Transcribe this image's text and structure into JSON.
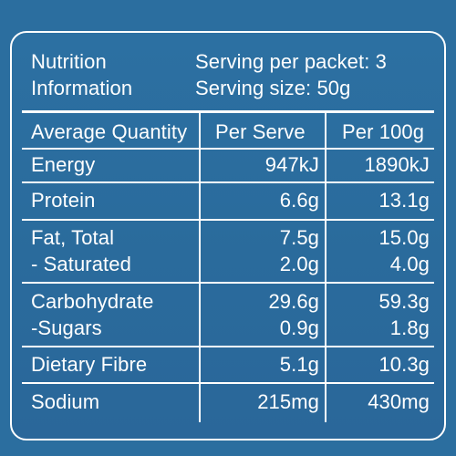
{
  "header": {
    "title_line1": "Nutrition",
    "title_line2": "Information",
    "servings_per_packet": "Serving per packet: 3",
    "serving_size": "Serving size: 50g"
  },
  "columns": {
    "quantity": "Average Quantity",
    "per_serve": "Per Serve",
    "per_100g": "Per 100g"
  },
  "rows": [
    {
      "label": "Energy",
      "per_serve": "947kJ",
      "per_100g": "1890kJ"
    },
    {
      "label": "Protein",
      "per_serve": "6.6g",
      "per_100g": "13.1g"
    },
    {
      "label": "Fat, Total",
      "per_serve": "7.5g",
      "per_100g": "15.0g"
    },
    {
      "label": "- Saturated",
      "per_serve": "2.0g",
      "per_100g": "4.0g"
    },
    {
      "label": "Carbohydrate",
      "per_serve": "29.6g",
      "per_100g": "59.3g"
    },
    {
      "label": "-Sugars",
      "per_serve": "0.9g",
      "per_100g": "1.8g"
    },
    {
      "label": "Dietary Fibre",
      "per_serve": "5.1g",
      "per_100g": "10.3g"
    },
    {
      "label": "Sodium",
      "per_serve": "215mg",
      "per_100g": "430mg"
    }
  ],
  "colors": {
    "background": "#2b6e9f",
    "text": "#ffffff",
    "rule": "#ffffff"
  }
}
